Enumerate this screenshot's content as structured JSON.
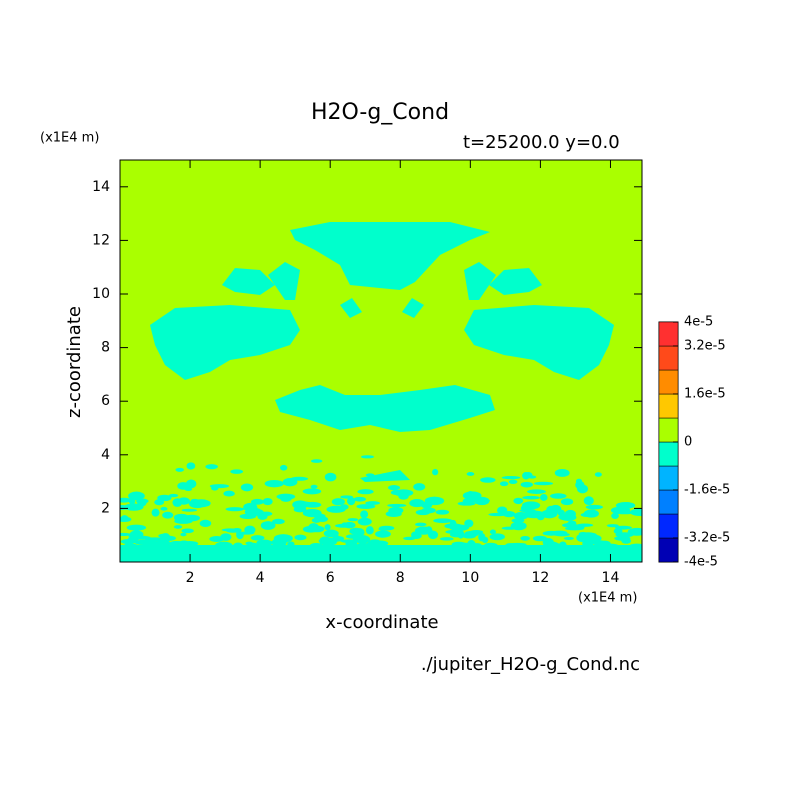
{
  "chart_data": {
    "type": "contour",
    "title": "H2O-g_Cond",
    "subtitle": "t=25200.0 y=0.0",
    "x_label": "x-coordinate",
    "y_label": "z-coordinate",
    "x_unit": "(x1E4 m)",
    "y_unit": "(x1E4 m)",
    "source": "./jupiter_H2O-g_Cond.nc",
    "xlim": [
      0,
      14.9
    ],
    "ylim": [
      0,
      15
    ],
    "xticks": [
      2,
      4,
      6,
      8,
      10,
      12,
      14
    ],
    "yticks": [
      2,
      4,
      6,
      8,
      10,
      12,
      14
    ],
    "levels": [
      -4e-05,
      -3.2e-05,
      -2.4e-05,
      -1.6e-05,
      -8e-06,
      0,
      8e-06,
      1.6e-05,
      2.4e-05,
      3.2e-05,
      4e-05
    ],
    "colors": [
      "#0000b4",
      "#0028ff",
      "#0080ff",
      "#00b4ff",
      "#00ffcc",
      "#aaff00",
      "#ffc800",
      "#ff8c00",
      "#ff4a1a",
      "#ff3030"
    ],
    "colorbar_ticks": [
      {
        "value": 4e-05,
        "label": "4e-5"
      },
      {
        "value": 3.2e-05,
        "label": "3.2e-5"
      },
      {
        "value": 1.6e-05,
        "label": "1.6e-5"
      },
      0,
      {
        "value": -1.6e-05,
        "label": "-1.6e-5"
      },
      {
        "value": -3.2e-05,
        "label": "-3.2e-5"
      },
      {
        "value": -4e-05,
        "label": "-4e-5"
      }
    ]
  }
}
